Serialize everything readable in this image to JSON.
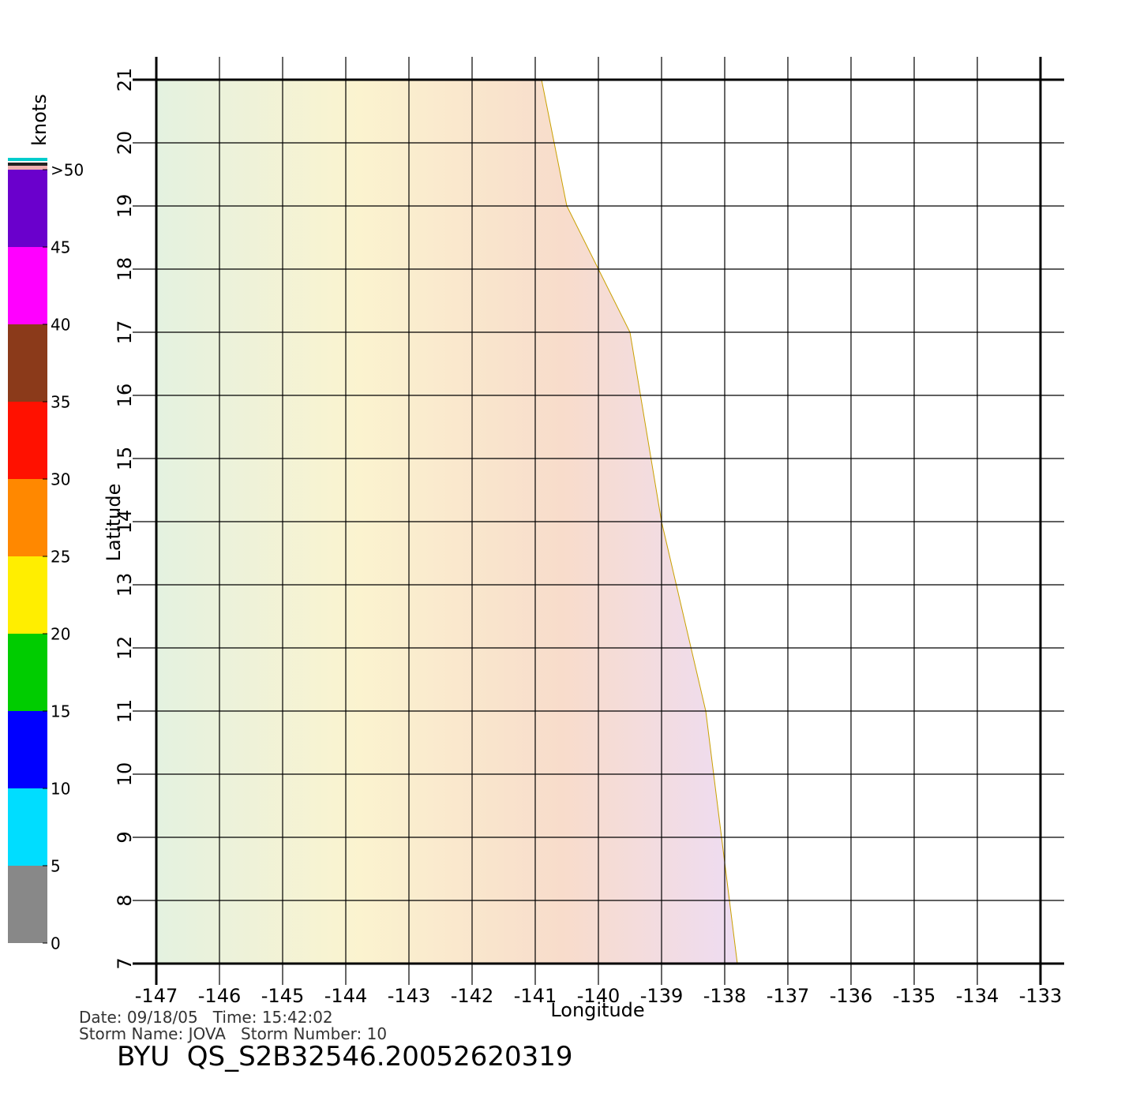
{
  "chart_data": {
    "type": "vector",
    "xlabel": "Longitude",
    "ylabel": "Latitude",
    "xlim": [
      -147,
      -133
    ],
    "ylim": [
      7,
      21
    ],
    "xticks": [
      -147,
      -146,
      -145,
      -144,
      -143,
      -142,
      -141,
      -140,
      -139,
      -138,
      -137,
      -136,
      -135,
      -134,
      -133
    ],
    "yticks": [
      7,
      8,
      9,
      10,
      11,
      12,
      13,
      14,
      15,
      16,
      17,
      18,
      19,
      20,
      21
    ],
    "grid": true,
    "swath": {
      "x": [
        -147,
        -140.9,
        -140.5,
        -139.5,
        -139.0,
        -138.3,
        -137.8,
        -147
      ],
      "y": [
        21,
        21,
        19,
        17,
        14,
        11,
        7,
        7
      ]
    },
    "colorbar": {
      "label": "knots",
      "lim": [
        0,
        50
      ],
      "ticks": [
        0,
        5,
        10,
        15,
        20,
        25,
        30,
        35,
        40,
        45,
        {
          "value": 50,
          "label": ">50"
        }
      ],
      "colors": [
        "#888888",
        "#00ddff",
        "#0000ff",
        "#00cc00",
        "#ffee00",
        "#ff8800",
        "#ff1100",
        "#8b3a1a",
        "#ff00ff",
        "#6a00cc"
      ]
    },
    "annotations": [
      "Date: 09/18/05   Time: 15:42:02",
      "Storm Name: JOVA   Storm Number: 10",
      "BYU  QS_S2B32546.20052620319"
    ]
  }
}
